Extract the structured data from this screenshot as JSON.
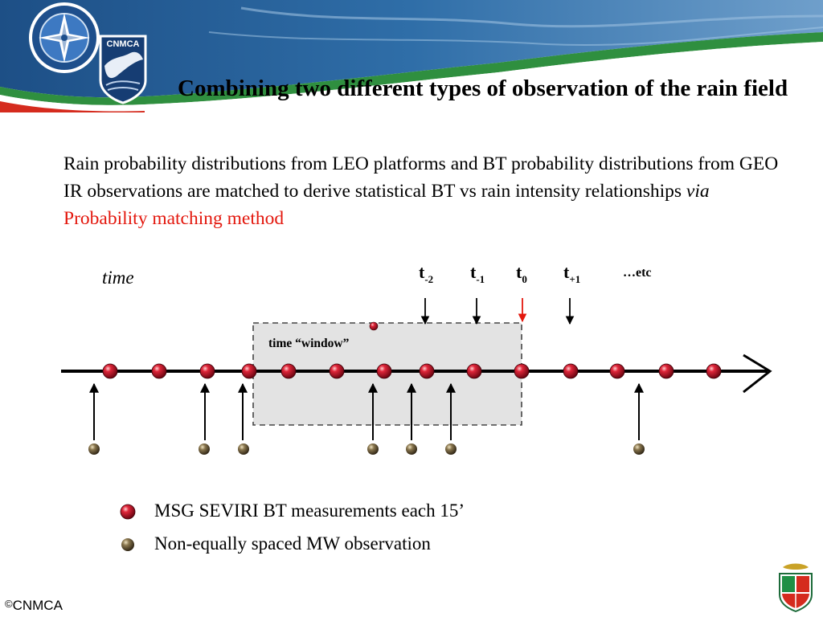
{
  "header": {
    "title": "Combining two different types of observation of the rain field",
    "cnmca_logo_text": "CNMCA"
  },
  "intro": {
    "text_plain": "Rain probability distributions from LEO platforms and BT probability distributions from GEO IR observations are matched to derive statistical BT vs rain intensity relationships ",
    "text_italic": "via",
    "text_highlight": " Probability matching method"
  },
  "diagram": {
    "time_label": "time",
    "window_label": "time “window”",
    "etc_label": "…etc",
    "time_markers": [
      {
        "base": "t",
        "sub": "-2"
      },
      {
        "base": "t",
        "sub": "-1"
      },
      {
        "base": "t",
        "sub": "0"
      },
      {
        "base": "t",
        "sub": "+1"
      }
    ]
  },
  "legend": {
    "items": [
      {
        "text": "MSG SEVIRI BT measurements  each 15’"
      },
      {
        "text": "Non-equally spaced MW observation"
      }
    ]
  },
  "footer": {
    "copyright_symbol": "©",
    "copyright": "CNMCA"
  },
  "colors": {
    "accent_red": "#e3170d",
    "seviri_dot": "#c8102e",
    "mw_dot": "#6b5a3a",
    "window_fill": "#e3e3e3"
  }
}
